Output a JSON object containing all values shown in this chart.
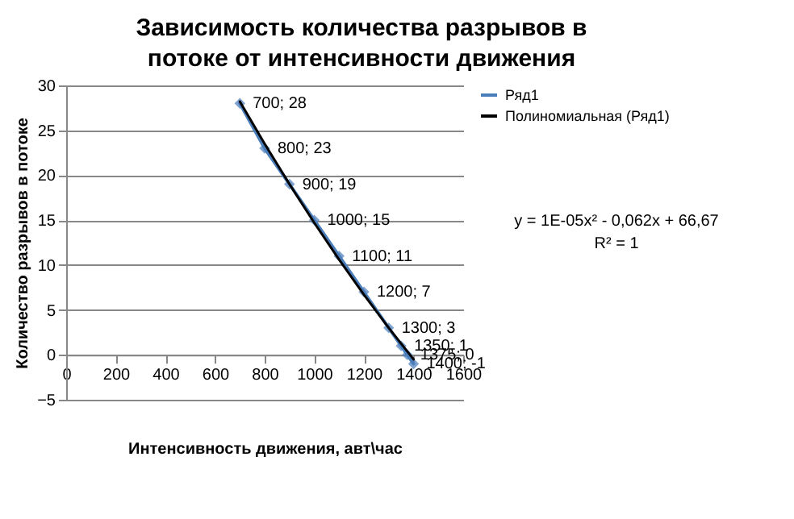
{
  "chart_data": {
    "type": "line",
    "title": "Зависимость количества разрывов в потоке от интенсивности движения",
    "xlabel": "Интенсивность движения, авт\\час",
    "ylabel": "Количество разрывов в потоке",
    "x": [
      700,
      800,
      900,
      1000,
      1100,
      1200,
      1300,
      1350,
      1375,
      1400
    ],
    "series": [
      {
        "name": "Ряд1",
        "marker": "diamond",
        "color": "#4a7ebb",
        "values": [
          28,
          23,
          19,
          15,
          11,
          7,
          3,
          1,
          0,
          -1
        ],
        "value_labels": [
          "700; 28",
          "800; 23",
          "900; 19",
          "1000; 15",
          "1100; 11",
          "1200; 7",
          "1300; 3",
          "1350; 1",
          "1375; 0",
          "1400; -1"
        ]
      },
      {
        "name": "Полиномиальная (Ряд1)",
        "type": "line",
        "marker": "none",
        "color": "#000000",
        "x": [
          700,
          800,
          900,
          1000,
          1100,
          1200,
          1300,
          1400
        ],
        "values": [
          28.2,
          23.5,
          19.0,
          14.7,
          10.6,
          6.7,
          3.0,
          -0.5
        ]
      }
    ],
    "annotations": [
      "y = 1E-05x² - 0,062x + 66,67\nR² = 1"
    ],
    "xlim": [
      0,
      1600
    ],
    "xticks": [
      0,
      200,
      400,
      600,
      800,
      1000,
      1200,
      1400,
      1600
    ],
    "ylim": [
      -5,
      30
    ],
    "yticks": [
      -5,
      0,
      5,
      10,
      15,
      20,
      25,
      30
    ],
    "grid": "y",
    "legend": "right"
  }
}
